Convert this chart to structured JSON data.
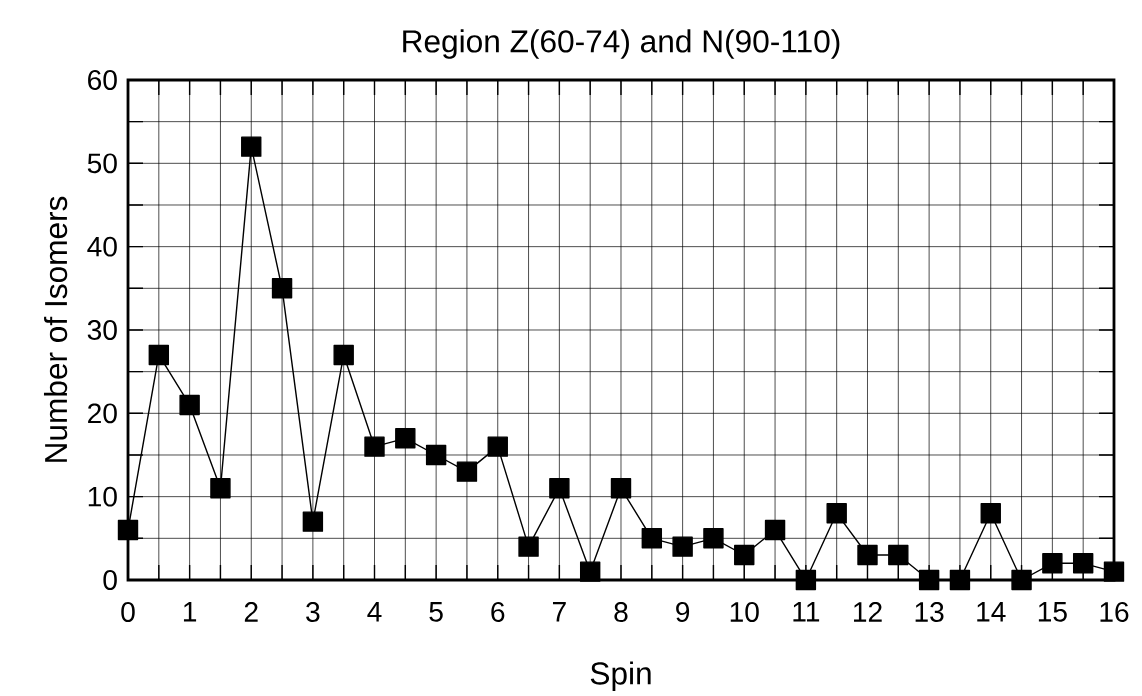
{
  "chart_data": {
    "type": "line",
    "title": "Region Z(60-74) and N(90-110)",
    "xlabel": "Spin",
    "ylabel": "Number of Isomers",
    "x": [
      0,
      0.5,
      1,
      1.5,
      2,
      2.5,
      3,
      3.5,
      4,
      4.5,
      5,
      5.5,
      6,
      6.5,
      7,
      7.5,
      8,
      8.5,
      9,
      9.5,
      10,
      10.5,
      11,
      11.5,
      12,
      12.5,
      13,
      13.5,
      14,
      14.5,
      15,
      15.5,
      16
    ],
    "series": [
      {
        "color": "#000000",
        "values": [
          6,
          27,
          21,
          11,
          52,
          35,
          7,
          27,
          16,
          17,
          15,
          13,
          16,
          4,
          11,
          1,
          11,
          5,
          4,
          5,
          3,
          6,
          0,
          8,
          3,
          3,
          0,
          0,
          8,
          0,
          2,
          2,
          1
        ]
      }
    ],
    "xlim": [
      0,
      16
    ],
    "ylim": [
      0,
      60
    ],
    "xticks": [
      0,
      {
        "value": 0.5,
        "label": null
      },
      1,
      {
        "value": 1.5,
        "label": null
      },
      2,
      {
        "value": 2.5,
        "label": null
      },
      3,
      {
        "value": 3.5,
        "label": null
      },
      4,
      {
        "value": 4.5,
        "label": null
      },
      5,
      {
        "value": 5.5,
        "label": null
      },
      6,
      {
        "value": 6.5,
        "label": null
      },
      7,
      {
        "value": 7.5,
        "label": null
      },
      8,
      {
        "value": 8.5,
        "label": null
      },
      9,
      {
        "value": 9.5,
        "label": null
      },
      10,
      {
        "value": 10.5,
        "label": null
      },
      11,
      {
        "value": 11.5,
        "label": null
      },
      12,
      {
        "value": 12.5,
        "label": null
      },
      13,
      {
        "value": 13.5,
        "label": null
      },
      14,
      {
        "value": 14.5,
        "label": null
      },
      15,
      {
        "value": 15.5,
        "label": null
      },
      16
    ],
    "yticks": [
      0,
      {
        "value": 5,
        "label": null
      },
      10,
      {
        "value": 15,
        "label": null
      },
      20,
      {
        "value": 25,
        "label": null
      },
      30,
      {
        "value": 35,
        "label": null
      },
      40,
      {
        "value": 45,
        "label": null
      },
      50,
      {
        "value": 55,
        "label": null
      },
      60
    ],
    "grid": true,
    "marker": "square",
    "line_style": "solid"
  }
}
